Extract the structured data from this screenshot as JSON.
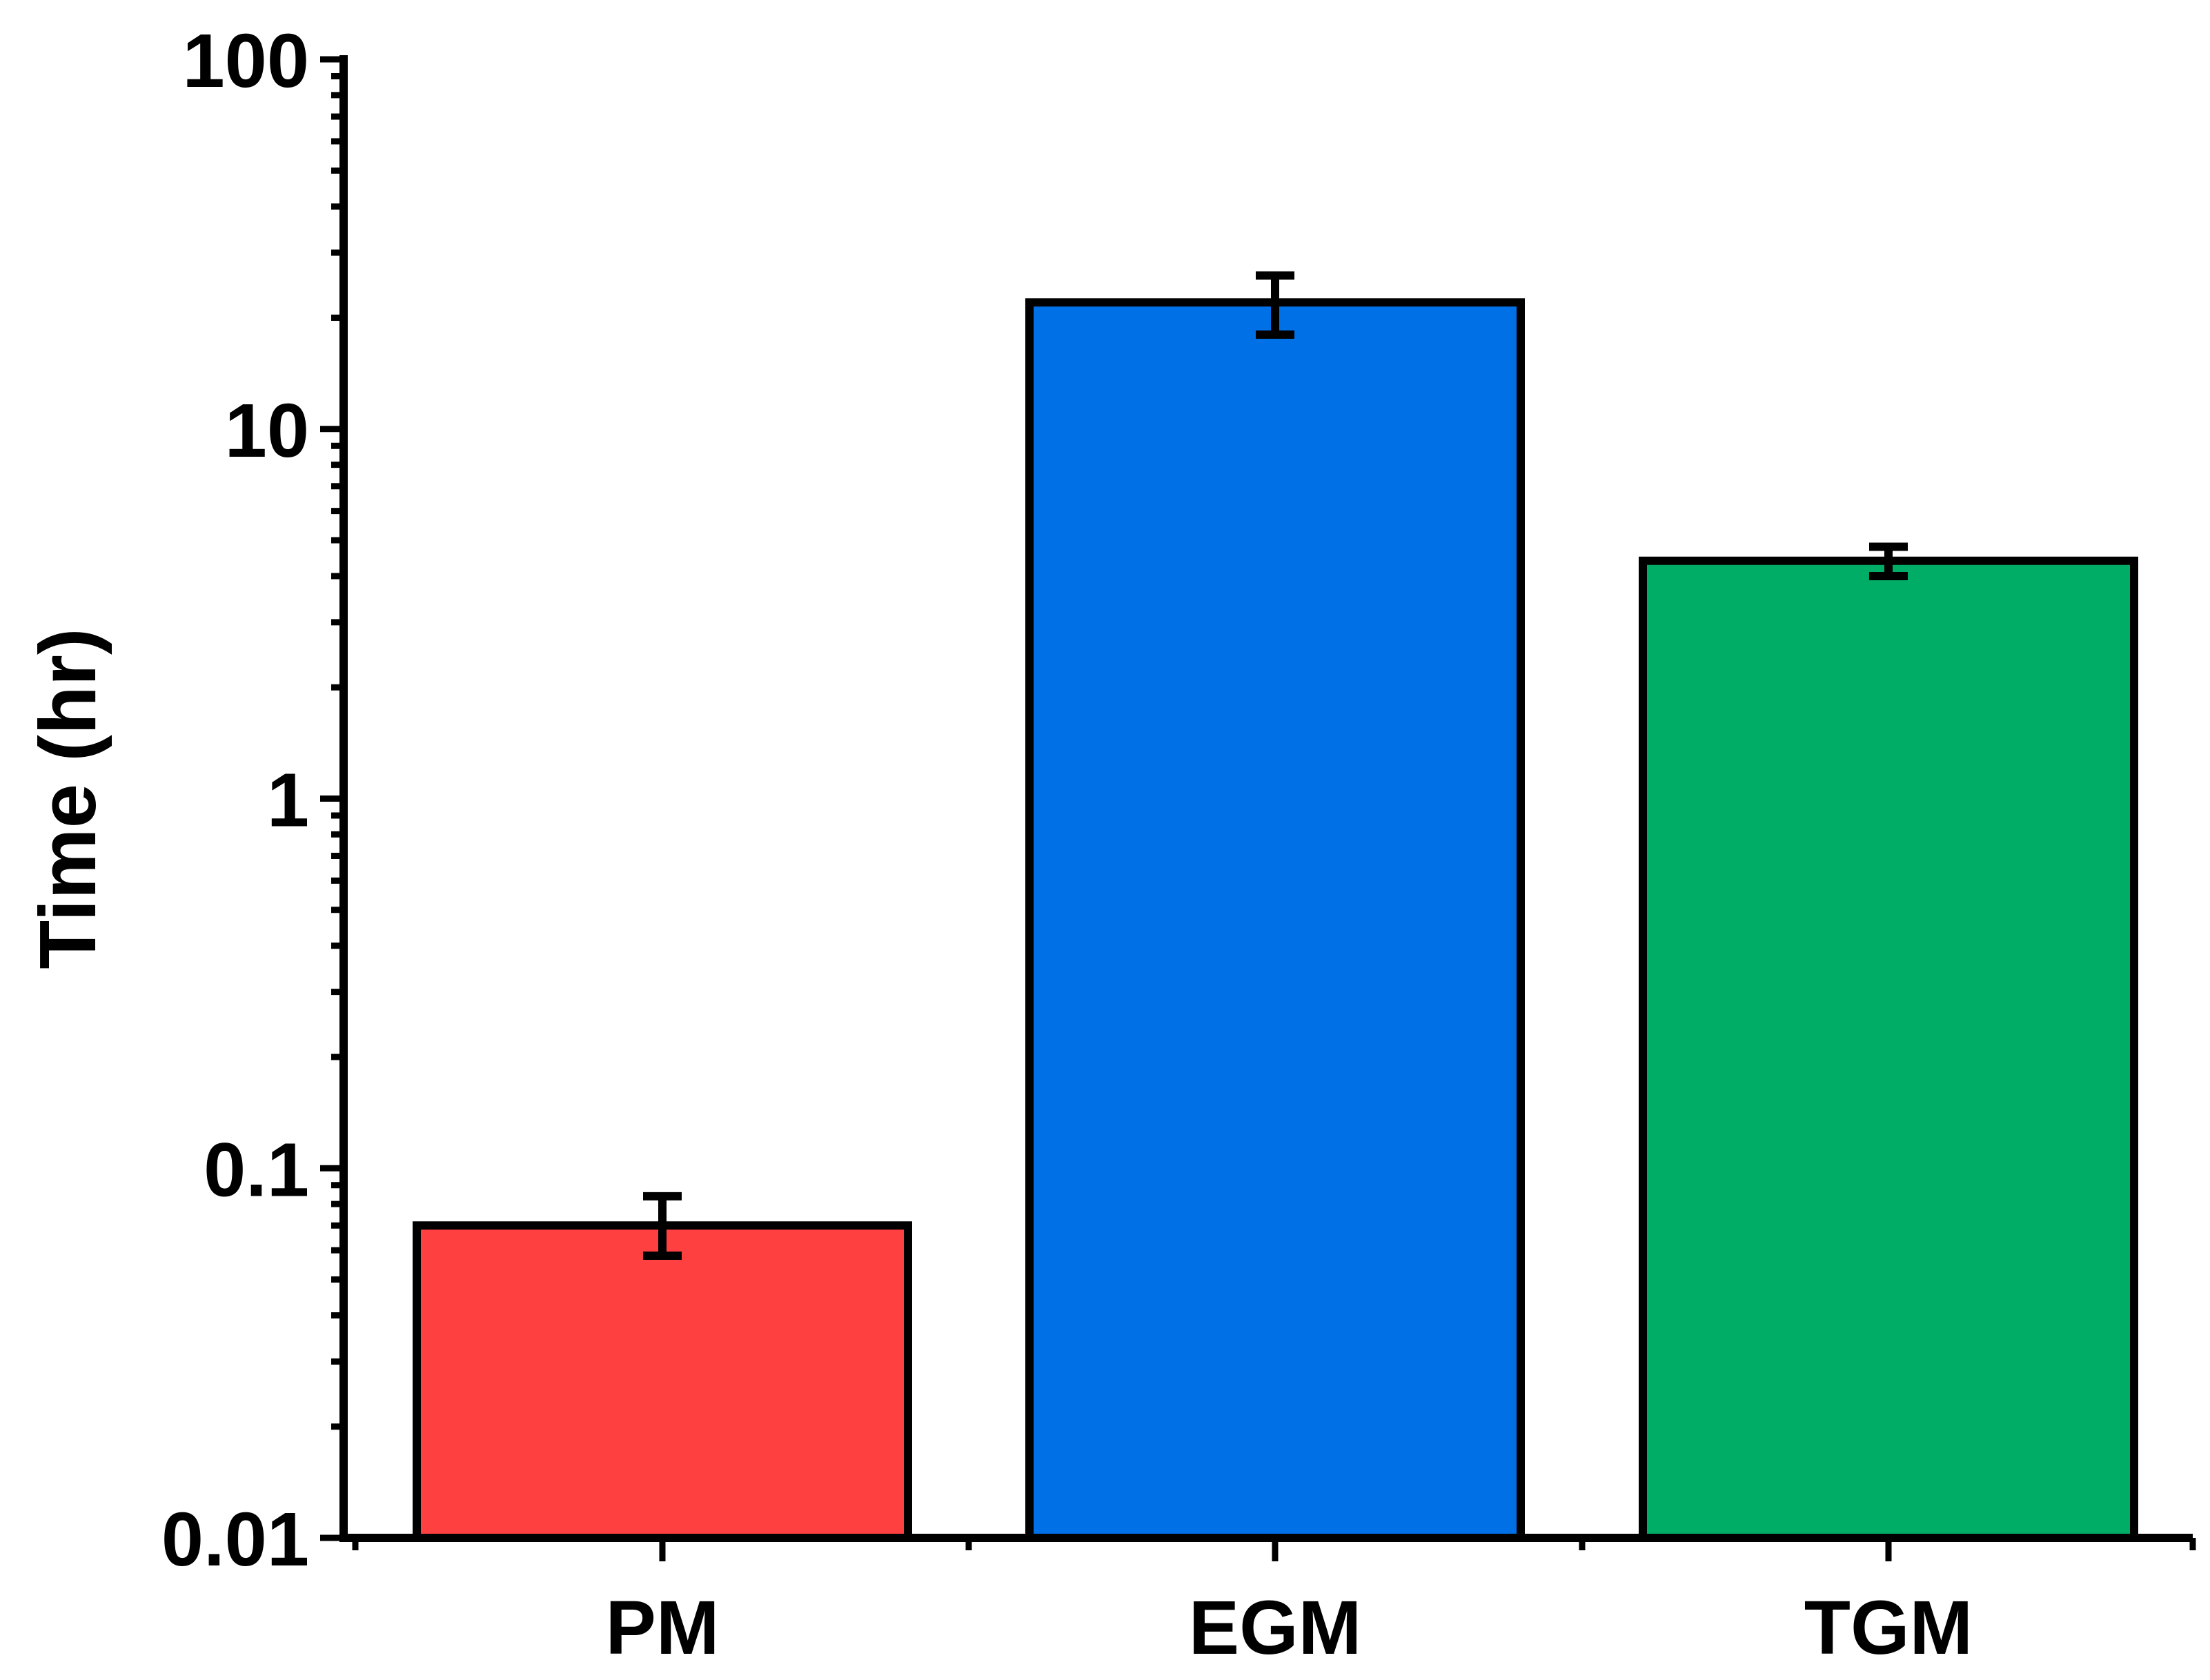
{
  "chart_data": {
    "type": "bar",
    "ylabel": "Time (hr)",
    "xlabel": "",
    "yscale": "log",
    "ylim": [
      0.01,
      100
    ],
    "y_ticks": [
      0.01,
      0.1,
      1,
      10,
      100
    ],
    "y_tick_labels": [
      "0.01",
      "0.1",
      "1",
      "10",
      "100"
    ],
    "categories": [
      "PM",
      "EGM",
      "TGM"
    ],
    "values": [
      0.07,
      22,
      4.4
    ],
    "error_low": [
      0.058,
      18,
      4.0
    ],
    "error_high": [
      0.084,
      26,
      4.8
    ],
    "colors": [
      "#ff4040",
      "#0070e6",
      "#00ad66"
    ],
    "grid": false,
    "legend": "none"
  }
}
